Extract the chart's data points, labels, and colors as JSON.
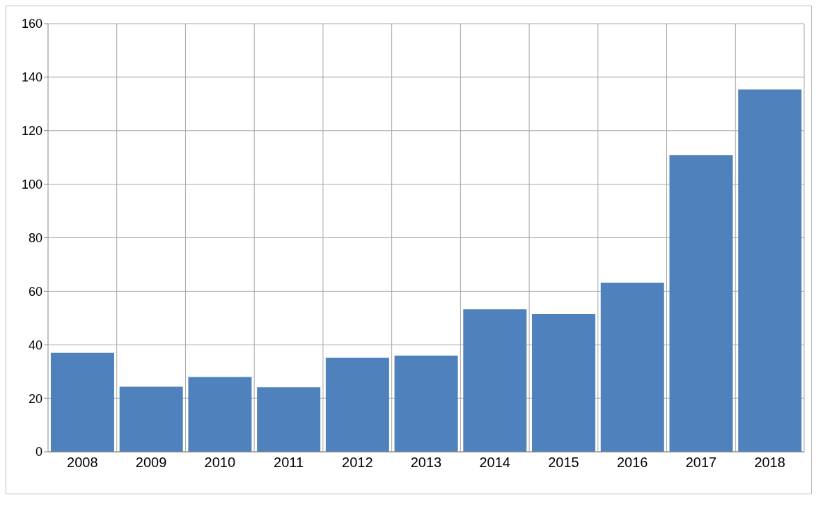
{
  "chart_data": {
    "type": "bar",
    "categories": [
      "2008",
      "2009",
      "2010",
      "2011",
      "2012",
      "2013",
      "2014",
      "2015",
      "2016",
      "2017",
      "2018"
    ],
    "values": [
      37,
      24.3,
      28,
      24.1,
      35.2,
      36,
      53.3,
      51.5,
      63.2,
      110.8,
      135.4
    ],
    "color": "#4f81bd",
    "ylim": [
      0,
      160
    ],
    "yticks": [
      0,
      20,
      40,
      60,
      80,
      100,
      120,
      140,
      160
    ],
    "grid": true
  }
}
